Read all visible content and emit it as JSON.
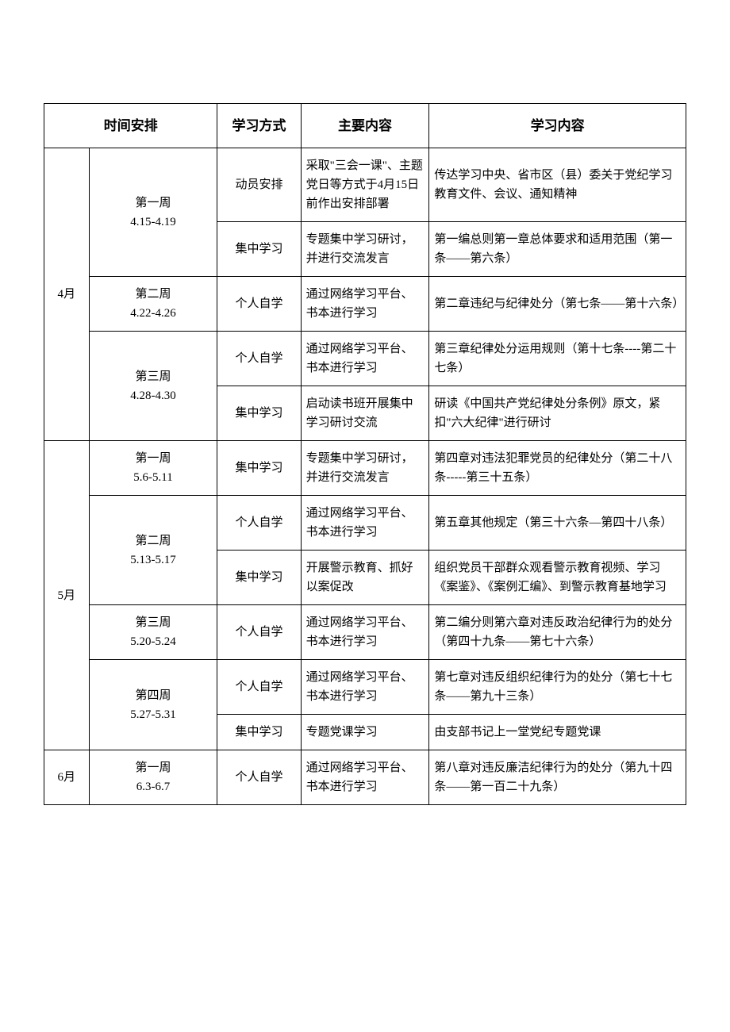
{
  "headers": {
    "time": "时间安排",
    "method": "学习方式",
    "main": "主要内容",
    "detail": "学习内容"
  },
  "months": {
    "m4": "4月",
    "m5": "5月",
    "m6": "6月"
  },
  "weeks": {
    "m4w1": {
      "label": "第一周",
      "range": "4.15-4.19"
    },
    "m4w2": {
      "label": "第二周",
      "range": "4.22-4.26"
    },
    "m4w3": {
      "label": "第三周",
      "range": "4.28-4.30"
    },
    "m5w1": {
      "label": "第一周",
      "range": "5.6-5.11"
    },
    "m5w2": {
      "label": "第二周",
      "range": "5.13-5.17"
    },
    "m5w3": {
      "label": "第三周",
      "range": "5.20-5.24"
    },
    "m5w4": {
      "label": "第四周",
      "range": "5.27-5.31"
    },
    "m6w1": {
      "label": "第一周",
      "range": "6.3-6.7"
    }
  },
  "rows": {
    "r1": {
      "method": "动员安排",
      "main": "采取\"三会一课\"、主题党日等方式于4月15日前作出安排部署",
      "detail": "传达学习中央、省市区（县）委关于党纪学习教育文件、会议、通知精神"
    },
    "r2": {
      "method": "集中学习",
      "main": "专题集中学习研讨，并进行交流发言",
      "detail": "第一编总则第一章总体要求和适用范围（第一条——第六条）"
    },
    "r3": {
      "method": "个人自学",
      "main": "通过网络学习平台、书本进行学习",
      "detail": "第二章违纪与纪律处分（第七条——第十六条）"
    },
    "r4": {
      "method": "个人自学",
      "main": "通过网络学习平台、书本进行学习",
      "detail": "第三章纪律处分运用规则（第十七条----第二十七条）"
    },
    "r5": {
      "method": "集中学习",
      "main": "启动读书班开展集中学习研讨交流",
      "detail": "研读《中国共产党纪律处分条例》原文，紧扣\"六大纪律\"进行研讨"
    },
    "r6": {
      "method": "集中学习",
      "main": "专题集中学习研讨，并进行交流发言",
      "detail": "第四章对违法犯罪党员的纪律处分（第二十八条-----第三十五条）"
    },
    "r7": {
      "method": "个人自学",
      "main": "通过网络学习平台、书本进行学习",
      "detail": "第五章其他规定（第三十六条—第四十八条）"
    },
    "r8": {
      "method": "集中学习",
      "main": "开展警示教育、抓好以案促改",
      "detail": "组织党员干部群众观看警示教育视频、学习《案鉴》、《案例汇编》、到警示教育基地学习"
    },
    "r9": {
      "method": "个人自学",
      "main": "通过网络学习平台、书本进行学习",
      "detail": "第二编分则第六章对违反政治纪律行为的处分（第四十九条——第七十六条）"
    },
    "r10": {
      "method": "个人自学",
      "main": "通过网络学习平台、书本进行学习",
      "detail": "第七章对违反组织纪律行为的处分（第七十七条——第九十三条）"
    },
    "r11": {
      "method": "集中学习",
      "main": "专题党课学习",
      "detail": "由支部书记上一堂党纪专题党课"
    },
    "r12": {
      "method": "个人自学",
      "main": "通过网络学习平台、书本进行学习",
      "detail": "第八章对违反廉洁纪律行为的处分（第九十四条——第一百二十九条）"
    }
  },
  "style": {
    "border_color": "#000000",
    "background": "#ffffff",
    "header_fontsize": 17,
    "body_fontsize": 15
  }
}
